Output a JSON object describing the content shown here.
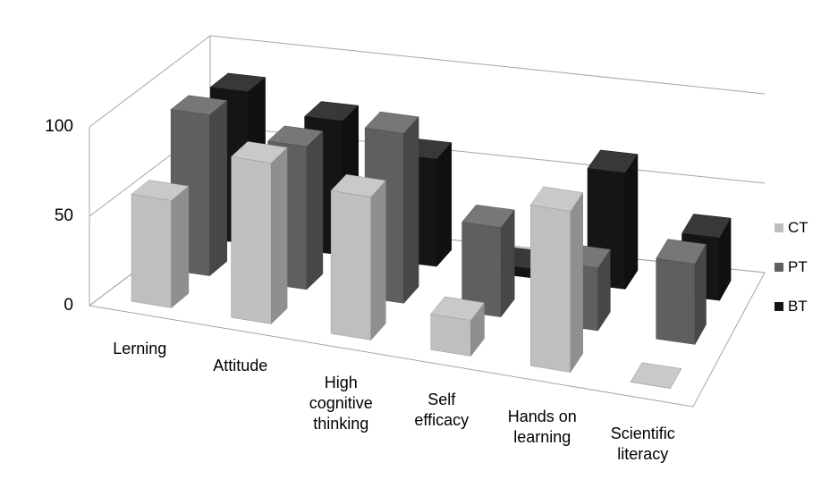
{
  "chart_data": {
    "type": "bar3d",
    "categories": [
      "Lerning",
      "Attitude",
      "High cognitive thinking",
      "Self efficacy",
      "Hands on learning",
      "Scientific literacy"
    ],
    "series": [
      {
        "name": "CT",
        "color": "#bfbfbf",
        "values": [
          60,
          90,
          80,
          20,
          90,
          0
        ]
      },
      {
        "name": "PT",
        "color": "#5f5f5f",
        "values": [
          90,
          80,
          95,
          50,
          35,
          45
        ]
      },
      {
        "name": "BT",
        "color": "#151515",
        "values": [
          85,
          75,
          60,
          5,
          65,
          35
        ]
      }
    ],
    "ylim": [
      0,
      100
    ],
    "yticks": [
      0,
      50,
      100
    ],
    "grid": true,
    "legend": "right"
  }
}
